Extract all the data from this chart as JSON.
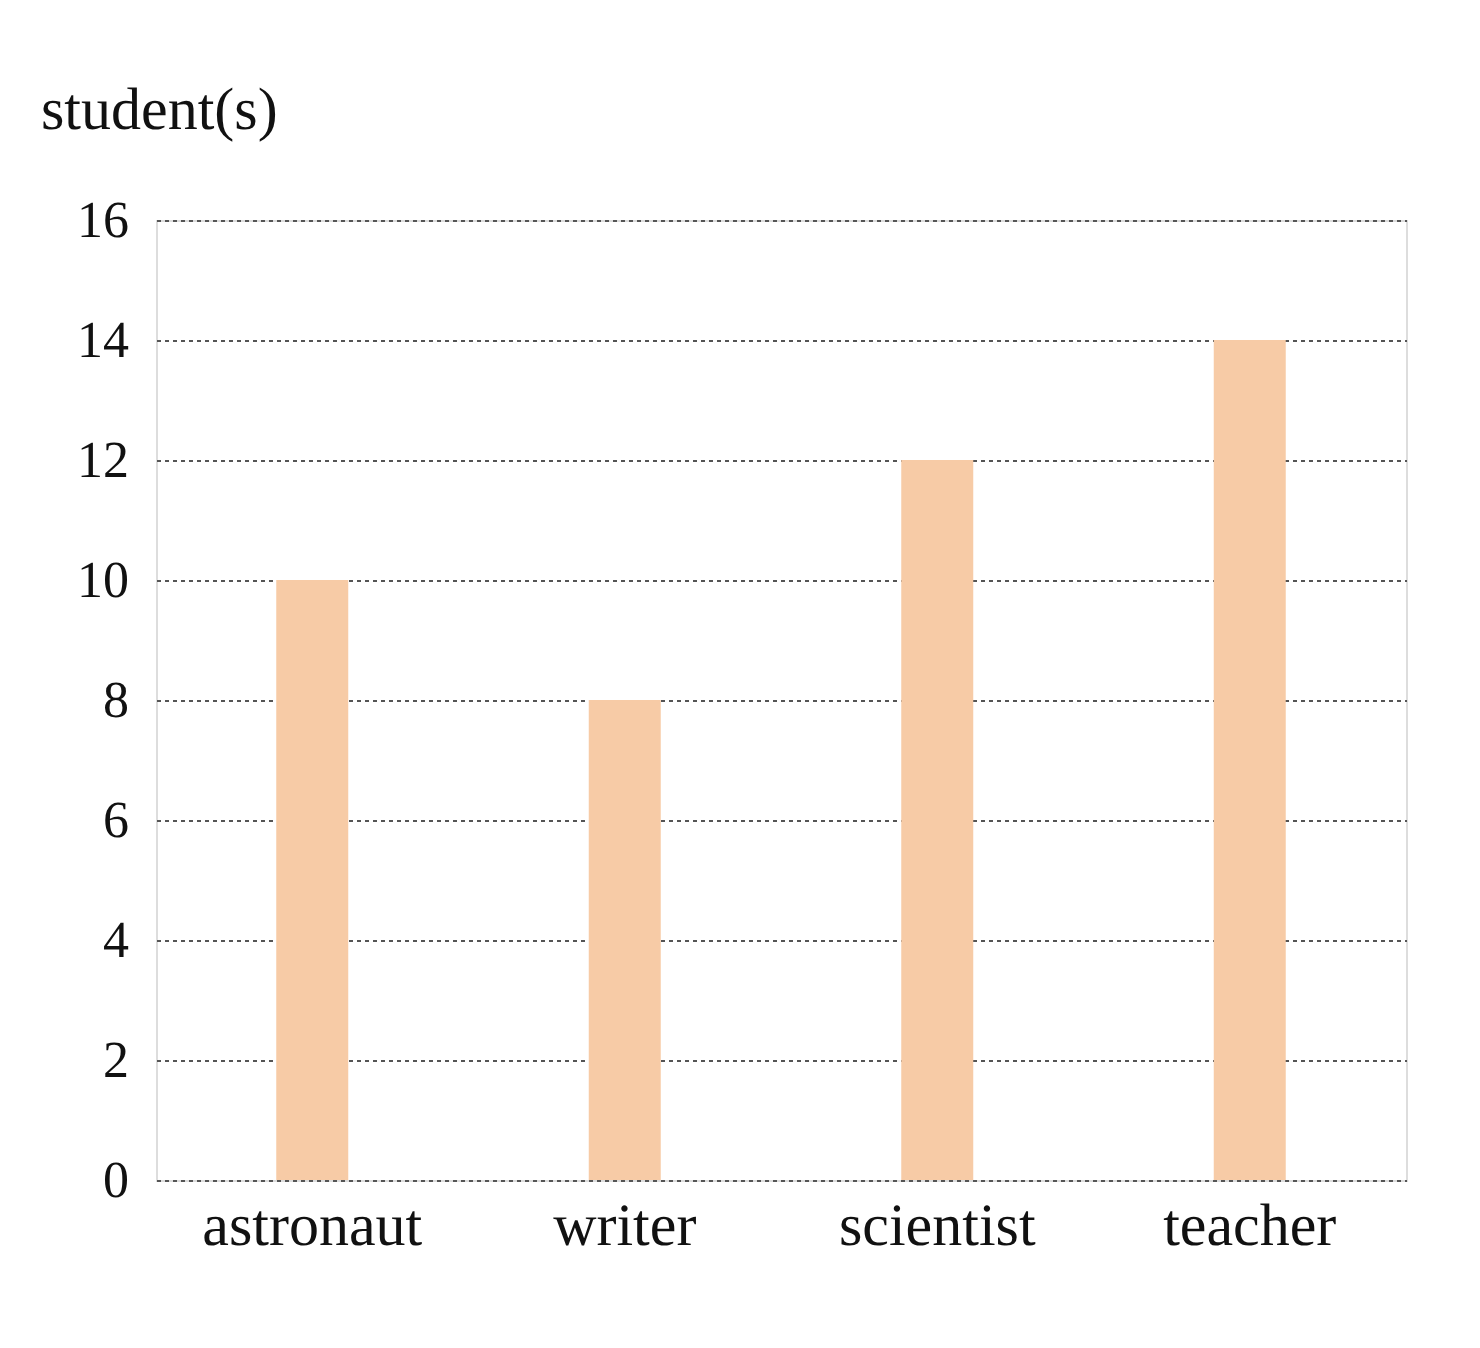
{
  "chart_data": {
    "type": "bar",
    "ylabel": "student(s)",
    "categories": [
      "astronaut",
      "writer",
      "scientist",
      "teacher"
    ],
    "values": [
      10,
      8,
      12,
      14
    ],
    "color": "#f7cba6",
    "ylim": [
      0,
      16
    ],
    "yticks": [
      0,
      2,
      4,
      6,
      8,
      10,
      12,
      14,
      16
    ],
    "grid": "y"
  }
}
